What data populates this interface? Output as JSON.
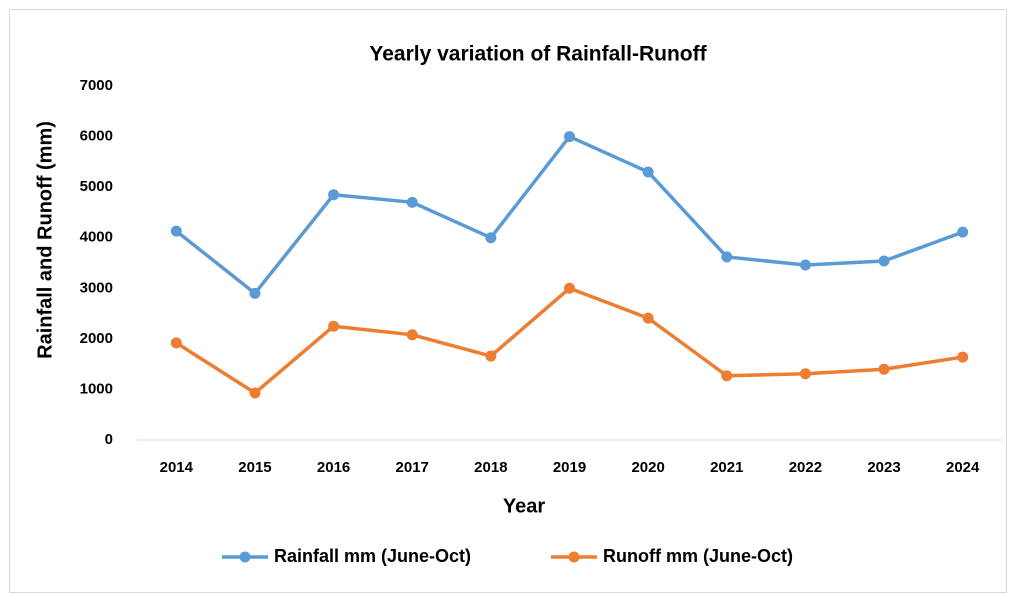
{
  "chart_data": {
    "type": "line",
    "title": "Yearly variation of Rainfall-Runoff",
    "x_label": "Year",
    "y_label": "Rainfall and Runoff (mm)",
    "categories": [
      "2014",
      "2015",
      "2016",
      "2017",
      "2018",
      "2019",
      "2020",
      "2021",
      "2022",
      "2023",
      "2024"
    ],
    "series": [
      {
        "name": "Rainfall mm (June-Oct)",
        "color": "#5b9bd5",
        "values": [
          4130,
          2900,
          4850,
          4700,
          4000,
          6000,
          5300,
          3620,
          3460,
          3540,
          4110
        ]
      },
      {
        "name": "Runoff mm (June-Oct)",
        "color": "#ed7d31",
        "values": [
          1920,
          930,
          2250,
          2080,
          1660,
          3000,
          2410,
          1270,
          1310,
          1400,
          1640
        ]
      }
    ],
    "ylim": [
      0,
      7000
    ],
    "yticks": [
      0,
      1000,
      2000,
      3000,
      4000,
      5000,
      6000,
      7000
    ],
    "grid": false,
    "legend": "bottom"
  }
}
